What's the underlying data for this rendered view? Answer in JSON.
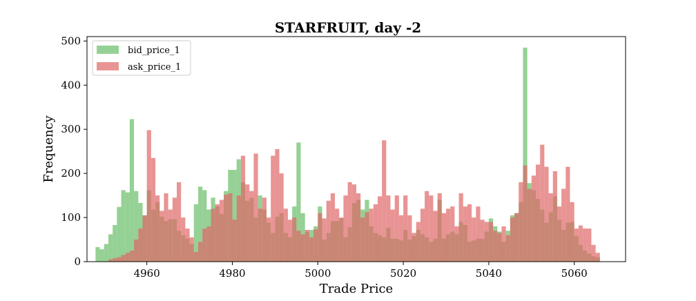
{
  "chart_data": {
    "type": "bar",
    "title": "STARFRUIT, day -2",
    "xlabel": "Trade Price",
    "ylabel": "Frequency",
    "xlim": [
      4946,
      5072
    ],
    "ylim": [
      0,
      510
    ],
    "xticks": [
      4960,
      4980,
      5000,
      5020,
      5040,
      5060
    ],
    "yticks": [
      0,
      100,
      200,
      300,
      400,
      500
    ],
    "legend_position": "top-left",
    "grid": false,
    "series": [
      {
        "name": "bid_price_1",
        "color": "#5cb85c",
        "opacity": 0.65,
        "x": [
          4948,
          4949,
          4950,
          4951,
          4952,
          4953,
          4954,
          4955,
          4956,
          4957,
          4958,
          4959,
          4960,
          4961,
          4962,
          4963,
          4964,
          4965,
          4966,
          4967,
          4968,
          4969,
          4970,
          4971,
          4972,
          4973,
          4974,
          4975,
          4976,
          4977,
          4978,
          4979,
          4980,
          4981,
          4982,
          4983,
          4984,
          4985,
          4986,
          4987,
          4988,
          4989,
          4990,
          4991,
          4992,
          4993,
          4994,
          4995,
          4996,
          4997,
          4998,
          4999,
          5000,
          5001,
          5002,
          5003,
          5004,
          5005,
          5006,
          5007,
          5008,
          5009,
          5010,
          5011,
          5012,
          5013,
          5014,
          5015,
          5016,
          5017,
          5018,
          5019,
          5020,
          5021,
          5022,
          5023,
          5024,
          5025,
          5026,
          5027,
          5028,
          5029,
          5030,
          5031,
          5032,
          5033,
          5034,
          5035,
          5036,
          5037,
          5038,
          5039,
          5040,
          5041,
          5042,
          5043,
          5044,
          5045,
          5046,
          5047,
          5048,
          5049,
          5050,
          5051,
          5052,
          5053,
          5054,
          5055,
          5056,
          5057,
          5058,
          5059,
          5060,
          5061,
          5062,
          5063,
          5064,
          5065
        ],
        "values": [
          33,
          28,
          40,
          62,
          83,
          124,
          162,
          157,
          323,
          160,
          133,
          105,
          162,
          118,
          135,
          102,
          92,
          96,
          96,
          70,
          60,
          52,
          40,
          130,
          170,
          162,
          118,
          145,
          125,
          108,
          160,
          208,
          208,
          232,
          180,
          138,
          145,
          100,
          150,
          118,
          88,
          65,
          102,
          110,
          65,
          55,
          125,
          270,
          110,
          68,
          72,
          80,
          125,
          50,
          65,
          92,
          92,
          98,
          55,
          78,
          133,
          140,
          118,
          140,
          80,
          65,
          60,
          55,
          77,
          52,
          52,
          48,
          72,
          50,
          58,
          72,
          62,
          55,
          45,
          52,
          140,
          52,
          62,
          68,
          62,
          90,
          83,
          45,
          48,
          52,
          52,
          68,
          98,
          80,
          68,
          45,
          70,
          105,
          110,
          135,
          485,
          178,
          162,
          142,
          118,
          88,
          112,
          148,
          95,
          72,
          88,
          90,
          58,
          38,
          25,
          18,
          12,
          10
        ]
      },
      {
        "name": "ask_price_1",
        "color": "#e06666",
        "opacity": 0.7,
        "x": [
          4948,
          4949,
          4950,
          4951,
          4952,
          4953,
          4954,
          4955,
          4956,
          4957,
          4958,
          4959,
          4960,
          4961,
          4962,
          4963,
          4964,
          4965,
          4966,
          4967,
          4968,
          4969,
          4970,
          4971,
          4972,
          4973,
          4974,
          4975,
          4976,
          4977,
          4978,
          4979,
          4980,
          4981,
          4982,
          4983,
          4984,
          4985,
          4986,
          4987,
          4988,
          4989,
          4990,
          4991,
          4992,
          4993,
          4994,
          4995,
          4996,
          4997,
          4998,
          4999,
          5000,
          5001,
          5002,
          5003,
          5004,
          5005,
          5006,
          5007,
          5008,
          5009,
          5010,
          5011,
          5012,
          5013,
          5014,
          5015,
          5016,
          5017,
          5018,
          5019,
          5020,
          5021,
          5022,
          5023,
          5024,
          5025,
          5026,
          5027,
          5028,
          5029,
          5030,
          5031,
          5032,
          5033,
          5034,
          5035,
          5036,
          5037,
          5038,
          5039,
          5040,
          5041,
          5042,
          5043,
          5044,
          5045,
          5046,
          5047,
          5048,
          5049,
          5050,
          5051,
          5052,
          5053,
          5054,
          5055,
          5056,
          5057,
          5058,
          5059,
          5060,
          5061,
          5062,
          5063,
          5064,
          5065
        ],
        "values": [
          0,
          0,
          0,
          5,
          8,
          10,
          15,
          20,
          25,
          50,
          75,
          105,
          298,
          235,
          150,
          115,
          155,
          118,
          145,
          180,
          100,
          75,
          55,
          22,
          45,
          75,
          80,
          120,
          130,
          140,
          152,
          155,
          95,
          150,
          240,
          175,
          160,
          245,
          120,
          145,
          100,
          240,
          255,
          200,
          120,
          95,
          100,
          70,
          62,
          72,
          55,
          73,
          110,
          98,
          138,
          155,
          120,
          100,
          150,
          180,
          175,
          155,
          100,
          112,
          120,
          130,
          148,
          275,
          150,
          118,
          150,
          105,
          150,
          105,
          65,
          90,
          120,
          160,
          150,
          115,
          155,
          110,
          120,
          125,
          80,
          155,
          125,
          130,
          100,
          125,
          95,
          90,
          90,
          70,
          65,
          80,
          60,
          100,
          110,
          180,
          218,
          165,
          195,
          220,
          265,
          215,
          155,
          205,
          125,
          165,
          215,
          135,
          75,
          82,
          75,
          75,
          38,
          20
        ]
      }
    ]
  }
}
